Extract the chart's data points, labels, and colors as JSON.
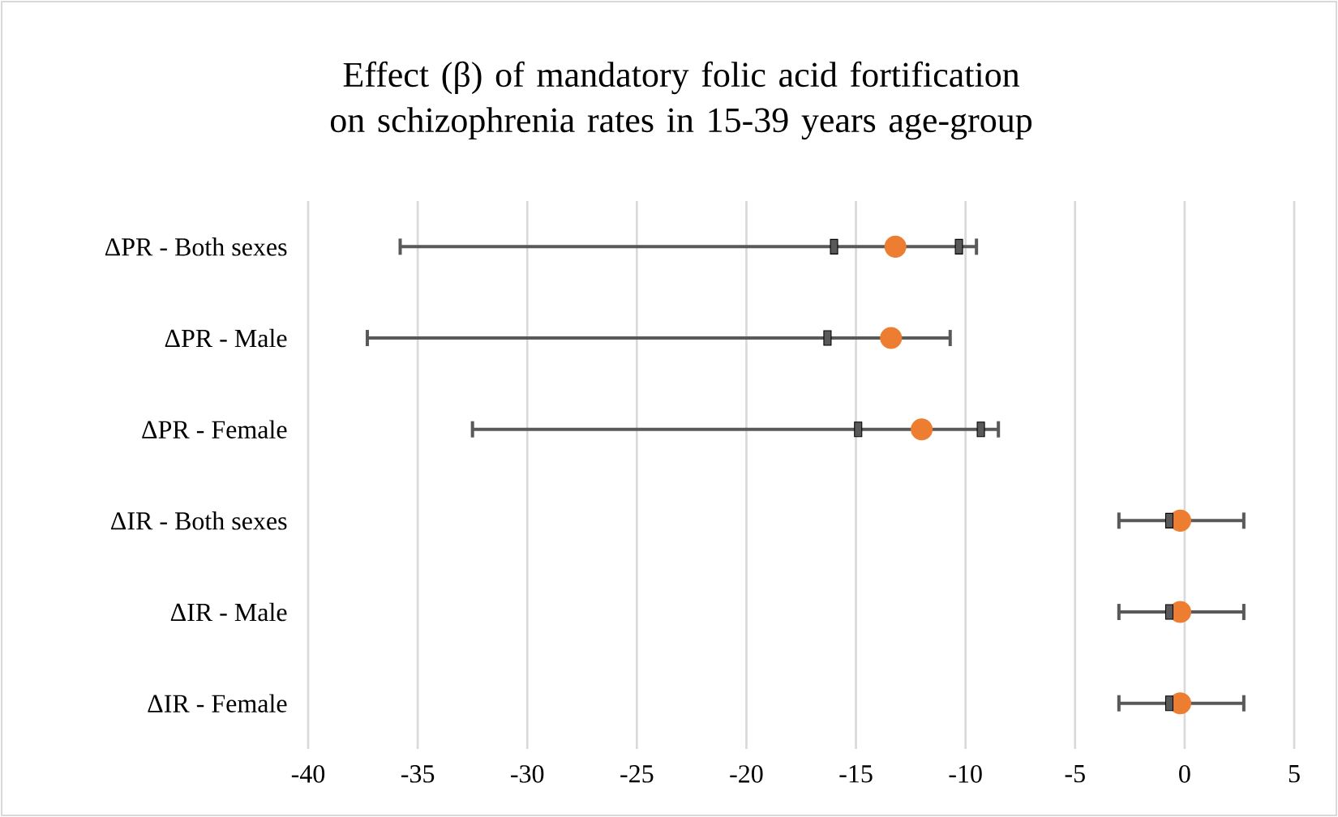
{
  "chart_data": {
    "type": "scatter",
    "title": "Effect (β) of mandatory folic acid fortification on schizophrenia rates in 15-39 years age-group",
    "orientation": "horizontal",
    "categories": [
      "ΔPR - Both sexes",
      "ΔPR - Male",
      "ΔPR - Female",
      "ΔIR - Both sexes",
      "ΔIR - Male",
      "ΔIR - Female"
    ],
    "xlim": [
      -40,
      5
    ],
    "xticks": [
      -40,
      -35,
      -30,
      -25,
      -20,
      -15,
      -10,
      -5,
      0,
      5
    ],
    "grid": "x",
    "series": [
      {
        "color": "#ed7d31",
        "marker": "circle",
        "values": [
          -13.2,
          -13.4,
          -12.0,
          -0.2,
          -0.2,
          -0.2
        ],
        "errors": [
          [
            -35.8,
            -9.5
          ],
          [
            -37.3,
            -10.7
          ],
          [
            -32.5,
            -8.5
          ],
          [
            -3.0,
            2.7
          ],
          [
            -3.0,
            2.7
          ],
          [
            -3.0,
            2.7
          ]
        ]
      },
      {
        "color": "#595959",
        "marker": "square",
        "values": [
          -16.0,
          -16.3,
          -14.9,
          -0.7,
          -0.7,
          -0.7
        ]
      },
      {
        "color": "#595959",
        "marker": "square",
        "values": [
          -10.3,
          null,
          -9.3,
          null,
          null,
          null
        ]
      }
    ]
  }
}
